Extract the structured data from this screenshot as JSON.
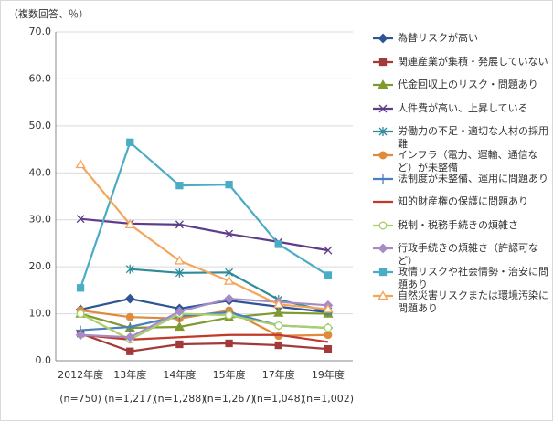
{
  "chart_data": {
    "type": "line",
    "y_axis_label": "（複数回答、％）",
    "categories": [
      "2012年度",
      "13年度",
      "14年度",
      "15年度",
      "17年度",
      "19年度"
    ],
    "category_notes": [
      "(n=750)",
      "(n=1,217)",
      "(n=1,288)",
      "(n=1,267)",
      "(n=1,048)",
      "(n=1,002)"
    ],
    "ylim": [
      0,
      70
    ],
    "yticks": [
      {
        "value": 0,
        "label": "0.0"
      },
      {
        "value": 10,
        "label": "10.0"
      },
      {
        "value": 20,
        "label": "20.0"
      },
      {
        "value": 30,
        "label": "30.0"
      },
      {
        "value": 40,
        "label": "40.0"
      },
      {
        "value": 50,
        "label": "50.0"
      },
      {
        "value": 60,
        "label": "60.0"
      },
      {
        "value": 70,
        "label": "70.0"
      }
    ],
    "grid": true,
    "legend": "right",
    "series": [
      {
        "name": "為替リスクが高い",
        "color": "#2f5597",
        "marker": "diamond",
        "values": [
          10.9,
          13.2,
          11.1,
          12.8,
          11.5,
          10.3
        ]
      },
      {
        "name": "関連産業が集積・発展していない",
        "color": "#a33a3a",
        "marker": "square",
        "values": [
          5.8,
          2.0,
          3.5,
          3.7,
          3.3,
          2.5
        ]
      },
      {
        "name": "代金回収上のリスク・問題あり",
        "color": "#7f9a2e",
        "marker": "triangle",
        "values": [
          10.0,
          7.0,
          7.2,
          9.2,
          10.2,
          10.0
        ]
      },
      {
        "name": "人件費が高い、上昇している",
        "color": "#5e3c8a",
        "marker": "x",
        "values": [
          30.2,
          29.2,
          29.0,
          27.0,
          25.3,
          23.5
        ]
      },
      {
        "name": "労働力の不足・適切な人材の採用難",
        "color": "#2e8b9a",
        "marker": "asterisk",
        "values": [
          null,
          19.5,
          18.7,
          18.8,
          13.0,
          10.5
        ]
      },
      {
        "name": "インフラ（電力、運輸、通信など）が未整備",
        "color": "#e08a3c",
        "marker": "circle",
        "values": [
          10.7,
          9.3,
          9.0,
          10.7,
          5.3,
          5.5
        ]
      },
      {
        "name": "法制度が未整備、運用に問題あり",
        "color": "#4a7fc1",
        "marker": "plus",
        "values": [
          6.5,
          7.2,
          9.5,
          10.3,
          7.5,
          7.0
        ]
      },
      {
        "name": "知的財産権の保護に問題あり",
        "color": "#c0392b",
        "marker": "none",
        "values": [
          5.5,
          4.5,
          5.0,
          5.5,
          5.5,
          4.0
        ]
      },
      {
        "name": "税制・税務手続きの煩雑さ",
        "color": "#a9cf6a",
        "marker": "circle",
        "marker_open": true,
        "values": [
          10.0,
          4.5,
          10.0,
          9.7,
          7.5,
          7.0
        ]
      },
      {
        "name": "行政手続きの煩雑さ（許認可など）",
        "color": "#a78bc6",
        "marker": "diamond",
        "values": [
          5.5,
          5.0,
          10.5,
          13.2,
          12.5,
          11.8
        ]
      },
      {
        "name": "政情リスクや社会情勢・治安に問題あり",
        "color": "#4bacc6",
        "marker": "square",
        "values": [
          15.5,
          46.5,
          37.3,
          37.5,
          24.8,
          18.2
        ]
      },
      {
        "name": "自然災害リスクまたは環境汚染に問題あり",
        "color": "#f5a55a",
        "marker": "triangle",
        "marker_open": true,
        "values": [
          41.8,
          29.0,
          21.3,
          17.0,
          12.0,
          11.0
        ]
      }
    ]
  }
}
